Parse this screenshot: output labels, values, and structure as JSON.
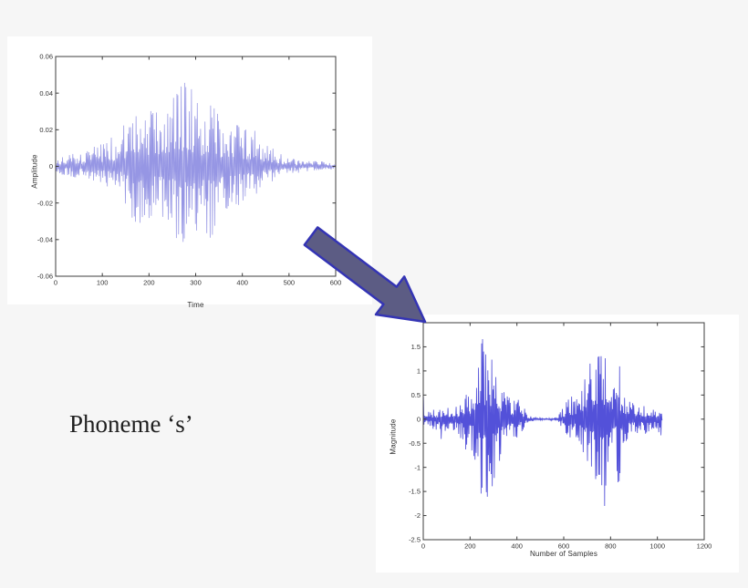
{
  "page": {
    "background_color": "#f6f6f6",
    "panel_color": "#ffffff"
  },
  "caption": {
    "text": "Phoneme ‘s’"
  },
  "arrow": {
    "meaning": "transformation from time waveform to sampled magnitude plot",
    "fill": "#5c5c84",
    "stroke": "#3434b4"
  },
  "chart_data": [
    {
      "type": "line",
      "title": "",
      "xlabel": "Time",
      "ylabel": "Amplitude",
      "xlim": [
        0,
        600
      ],
      "ylim": [
        -0.06,
        0.06
      ],
      "xticks": [
        0,
        100,
        200,
        300,
        400,
        500,
        600
      ],
      "xtick_labels": [
        "0",
        "100",
        "200",
        "300",
        "400",
        "500",
        "600"
      ],
      "yticks": [
        0.06,
        0.04,
        0.02,
        0,
        -0.02,
        -0.04,
        -0.06
      ],
      "ytick_labels": [
        "0.06",
        "0.04",
        "0.02",
        "0",
        "-0.02",
        "-0.04",
        "-0.06"
      ],
      "grid": false,
      "axis_color": "#3c3c3c",
      "tick_label_color": "#333333",
      "series": [
        {
          "name": "speech waveform of phoneme 's'",
          "color": "#8d8de2",
          "x_start": 0,
          "x_end": 600,
          "peak_max": 0.053,
          "peak_min": -0.055,
          "envelope": [
            [
              0,
              0.004,
              0.004
            ],
            [
              20,
              0.006,
              0.005
            ],
            [
              40,
              0.007,
              0.006
            ],
            [
              60,
              0.007,
              0.006
            ],
            [
              75,
              0.01,
              0.009
            ],
            [
              90,
              0.012,
              0.011
            ],
            [
              105,
              0.013,
              0.012
            ],
            [
              120,
              0.016,
              0.014
            ],
            [
              135,
              0.014,
              0.013
            ],
            [
              150,
              0.026,
              0.022
            ],
            [
              160,
              0.032,
              0.028
            ],
            [
              170,
              0.028,
              0.03
            ],
            [
              180,
              0.03,
              0.034
            ],
            [
              190,
              0.032,
              0.028
            ],
            [
              200,
              0.035,
              0.03
            ],
            [
              210,
              0.03,
              0.028
            ],
            [
              220,
              0.033,
              0.03
            ],
            [
              230,
              0.035,
              0.03
            ],
            [
              240,
              0.04,
              0.034
            ],
            [
              250,
              0.047,
              0.036
            ],
            [
              260,
              0.05,
              0.04
            ],
            [
              270,
              0.046,
              0.044
            ],
            [
              280,
              0.053,
              0.048
            ],
            [
              287,
              0.048,
              0.055
            ],
            [
              295,
              0.04,
              0.042
            ],
            [
              305,
              0.034,
              0.032
            ],
            [
              315,
              0.032,
              0.03
            ],
            [
              325,
              0.036,
              0.038
            ],
            [
              335,
              0.04,
              0.042
            ],
            [
              345,
              0.03,
              0.032
            ],
            [
              360,
              0.026,
              0.026
            ],
            [
              375,
              0.022,
              0.02
            ],
            [
              390,
              0.025,
              0.022
            ],
            [
              405,
              0.02,
              0.018
            ],
            [
              420,
              0.022,
              0.018
            ],
            [
              435,
              0.018,
              0.016
            ],
            [
              450,
              0.014,
              0.012
            ],
            [
              465,
              0.01,
              0.009
            ],
            [
              480,
              0.007,
              0.006
            ],
            [
              495,
              0.005,
              0.005
            ],
            [
              510,
              0.004,
              0.004
            ],
            [
              530,
              0.003,
              0.003
            ],
            [
              560,
              0.003,
              0.002
            ],
            [
              600,
              0.002,
              0.002
            ]
          ]
        }
      ]
    },
    {
      "type": "line",
      "title": "",
      "xlabel": "Number of Samples",
      "ylabel": "Magnitude",
      "xlim": [
        0,
        1200
      ],
      "ylim": [
        -2.5,
        2
      ],
      "xticks": [
        0,
        200,
        400,
        600,
        800,
        1000,
        1200
      ],
      "xtick_labels": [
        "0",
        "200",
        "400",
        "600",
        "800",
        "1000",
        "1200"
      ],
      "yticks": [
        2,
        1.5,
        1,
        0.5,
        0,
        -0.5,
        -1,
        -1.5,
        -2,
        -2.5
      ],
      "ytick_labels": [
        "",
        "1.5",
        "1",
        "0.5",
        "0",
        "-0.5",
        "-1",
        "-1.5",
        "-2",
        "-2.5"
      ],
      "grid": false,
      "axis_color": "#3c3c3c",
      "tick_label_color": "#333333",
      "series": [
        {
          "name": "sampled phoneme 's' signal, two bursts with silence gap",
          "color": "#4442d6",
          "x_start": 0,
          "x_end": 1020,
          "peak_max": 1.8,
          "peak_min": -2.1,
          "envelope": [
            [
              0,
              1.0,
              0.25
            ],
            [
              6,
              0.15,
              0.15
            ],
            [
              20,
              0.15,
              0.15
            ],
            [
              40,
              0.2,
              0.2
            ],
            [
              60,
              0.2,
              0.25
            ],
            [
              80,
              0.25,
              0.45
            ],
            [
              95,
              0.2,
              0.25
            ],
            [
              110,
              0.25,
              0.25
            ],
            [
              130,
              0.3,
              0.3
            ],
            [
              145,
              0.3,
              0.35
            ],
            [
              160,
              0.35,
              0.4
            ],
            [
              175,
              0.5,
              0.5
            ],
            [
              186,
              1.4,
              2.1
            ],
            [
              196,
              0.5,
              0.6
            ],
            [
              210,
              0.7,
              0.7
            ],
            [
              225,
              1.2,
              1.0
            ],
            [
              235,
              1.75,
              1.3
            ],
            [
              245,
              1.6,
              1.7
            ],
            [
              255,
              1.8,
              2.05
            ],
            [
              265,
              1.5,
              1.4
            ],
            [
              275,
              1.4,
              1.8
            ],
            [
              285,
              1.3,
              1.6
            ],
            [
              295,
              1.3,
              1.4
            ],
            [
              305,
              1.45,
              1.3
            ],
            [
              315,
              1.0,
              1.1
            ],
            [
              325,
              0.8,
              0.9
            ],
            [
              340,
              0.6,
              0.7
            ],
            [
              355,
              0.55,
              0.6
            ],
            [
              370,
              0.5,
              0.55
            ],
            [
              385,
              0.55,
              0.5
            ],
            [
              400,
              0.45,
              0.4
            ],
            [
              415,
              0.35,
              0.35
            ],
            [
              430,
              0.25,
              0.25
            ],
            [
              445,
              0.12,
              0.12
            ],
            [
              460,
              0.05,
              0.05
            ],
            [
              475,
              0.03,
              0.03
            ],
            [
              500,
              0.02,
              0.02
            ],
            [
              530,
              0.02,
              0.02
            ],
            [
              560,
              0.03,
              0.03
            ],
            [
              580,
              0.1,
              0.1
            ],
            [
              595,
              0.25,
              0.2
            ],
            [
              610,
              0.35,
              0.3
            ],
            [
              625,
              0.5,
              0.4
            ],
            [
              640,
              0.45,
              0.45
            ],
            [
              655,
              0.5,
              0.5
            ],
            [
              670,
              0.6,
              0.6
            ],
            [
              685,
              0.8,
              0.7
            ],
            [
              700,
              1.45,
              1.0
            ],
            [
              710,
              1.2,
              1.5
            ],
            [
              720,
              1.0,
              1.2
            ],
            [
              730,
              1.1,
              1.5
            ],
            [
              745,
              1.3,
              1.2
            ],
            [
              760,
              1.5,
              1.8
            ],
            [
              770,
              1.6,
              2.1
            ],
            [
              780,
              1.75,
              1.6
            ],
            [
              790,
              1.4,
              1.3
            ],
            [
              800,
              0.9,
              1.0
            ],
            [
              810,
              0.7,
              0.8
            ],
            [
              822,
              0.6,
              0.6
            ],
            [
              835,
              1.4,
              1.9
            ],
            [
              845,
              0.7,
              0.8
            ],
            [
              860,
              0.5,
              0.5
            ],
            [
              875,
              0.4,
              0.45
            ],
            [
              890,
              0.35,
              0.4
            ],
            [
              905,
              0.3,
              0.3
            ],
            [
              920,
              0.35,
              0.3
            ],
            [
              935,
              0.35,
              0.35
            ],
            [
              950,
              0.25,
              0.3
            ],
            [
              965,
              0.3,
              0.25
            ],
            [
              980,
              0.25,
              0.25
            ],
            [
              995,
              0.2,
              0.2
            ],
            [
              1008,
              0.22,
              0.3
            ],
            [
              1016,
              0.15,
              0.35
            ],
            [
              1020,
              0.05,
              0.05
            ]
          ]
        }
      ]
    }
  ]
}
